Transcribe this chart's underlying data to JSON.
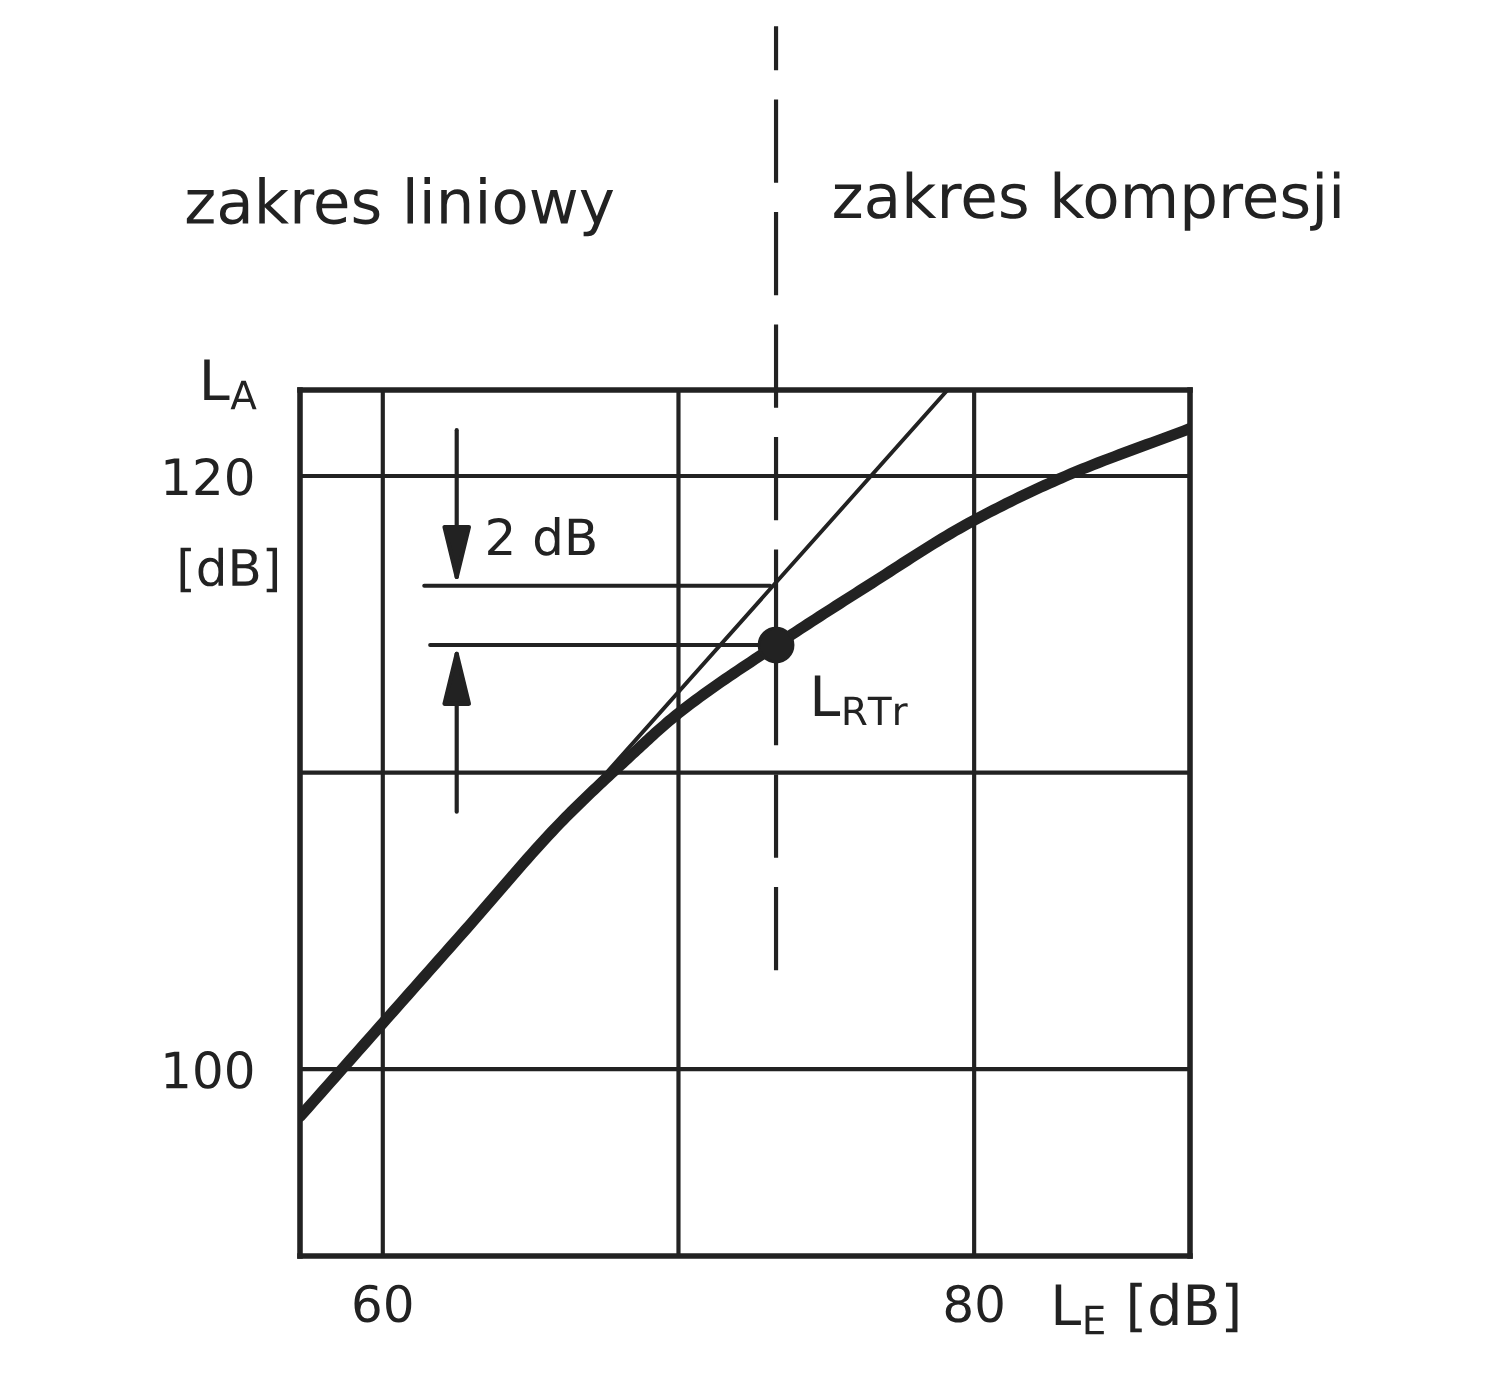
{
  "chart_data": {
    "type": "line",
    "xlabel": "L$_{E}$ [dB]",
    "ylabel": "L$_{A}$",
    "annotations": [
      "zakres liniowy",
      "zakres kompresji",
      "[dB]",
      {
        "text": "2 dB",
        "x": 62.5,
        "y": 116.3
      },
      {
        "text": "L$_{RTr}$",
        "x": 73.3,
        "y": 114.3
      }
    ],
    "series": [
      {
        "color": "#222222",
        "x": [
          57.2,
          62.8,
          66.0,
          68.2,
          70.0,
          73.3,
          76.4,
          79.8,
          83.1,
          87.3
        ],
        "values": [
          98.4,
          104.7,
          108.3,
          110.4,
          112.0,
          114.3,
          116.3,
          118.4,
          120.0,
          121.6
        ]
      },
      {
        "color": "#222222",
        "x": [
          57.2,
          79.1
        ],
        "values": [
          98.4,
          122.9
        ]
      },
      {
        "type": "scatter",
        "marker": "circle",
        "color": "#222222",
        "x": [
          73.3
        ],
        "values": [
          114.3
        ]
      },
      {
        "color": "#222222",
        "x": [
          61.4,
          73.1
        ],
        "values": [
          116.3,
          116.3
        ]
      },
      {
        "color": "#222222",
        "x": [
          61.6,
          73.4
        ],
        "values": [
          114.3,
          114.3
        ]
      }
    ],
    "xlim": [
      57.2,
      87.3
    ],
    "ylim": [
      93.7,
      122.9
    ],
    "xticks": [
      60,
      {
        "value": 70,
        "label": null
      },
      80
    ],
    "yticks": [
      100,
      {
        "value": 110,
        "label": null
      },
      120
    ],
    "ref_lines": [
      {
        "axis": "x",
        "value": 73.3,
        "line_style": "dashed",
        "color": "#222222"
      }
    ],
    "grid": true,
    "marker": "none"
  }
}
